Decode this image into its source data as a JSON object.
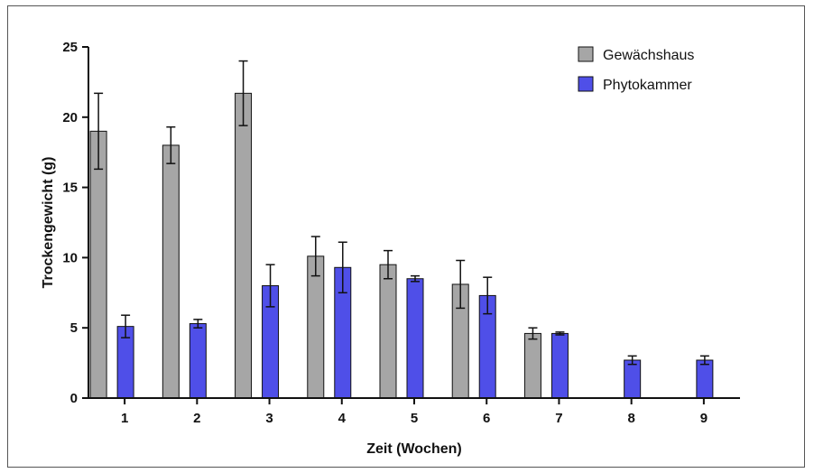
{
  "chart_data": {
    "type": "bar",
    "title": "",
    "xlabel": "Zeit (Wochen)",
    "ylabel": "Trockengewicht (g)",
    "ylim": [
      0,
      25
    ],
    "yticks": [
      "0",
      "5",
      "10",
      "15",
      "20",
      "25"
    ],
    "categories": [
      "1",
      "2",
      "3",
      "4",
      "5",
      "6",
      "7",
      "8",
      "9"
    ],
    "legend_position": "top-right",
    "series": [
      {
        "name": "Gewächshaus",
        "color": "#a6a6a6",
        "values": [
          19.0,
          18.0,
          21.7,
          10.1,
          9.5,
          8.1,
          4.6,
          null,
          null
        ],
        "errors": [
          2.7,
          1.3,
          2.3,
          1.4,
          1.0,
          1.7,
          0.4,
          null,
          null
        ]
      },
      {
        "name": "Phytokammer",
        "color": "#4f4fe8",
        "values": [
          5.1,
          5.3,
          8.0,
          9.3,
          8.5,
          7.3,
          4.6,
          2.7,
          2.7
        ],
        "errors": [
          0.8,
          0.3,
          1.5,
          1.8,
          0.2,
          1.3,
          0.1,
          0.3,
          0.3
        ]
      }
    ]
  }
}
